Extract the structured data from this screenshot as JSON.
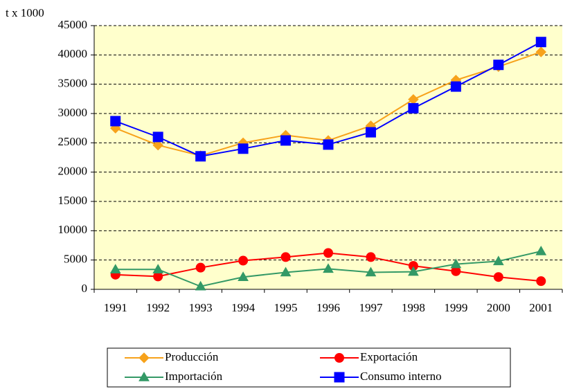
{
  "chart_data": {
    "type": "line",
    "y_label": "t x 1000",
    "categories": [
      "1991",
      "1992",
      "1993",
      "1994",
      "1995",
      "1996",
      "1997",
      "1998",
      "1999",
      "2000",
      "2001"
    ],
    "series": [
      {
        "name": "Producción",
        "color": "#f7a21b",
        "marker": "diamond",
        "values": [
          27500,
          24600,
          22800,
          25000,
          26300,
          25400,
          27900,
          32400,
          35700,
          38000,
          40500
        ]
      },
      {
        "name": "Exportación",
        "color": "#ff0000",
        "marker": "circle",
        "values": [
          2500,
          2200,
          3700,
          4900,
          5500,
          6200,
          5500,
          4000,
          3100,
          2100,
          1400
        ]
      },
      {
        "name": "Importación",
        "color": "#339966",
        "marker": "triangle",
        "values": [
          3400,
          3400,
          500,
          2100,
          2900,
          3500,
          2900,
          3000,
          4300,
          4800,
          6500
        ]
      },
      {
        "name": "Consumo interno",
        "color": "#0000ff",
        "marker": "square",
        "values": [
          28700,
          26000,
          22700,
          24000,
          25400,
          24700,
          26800,
          30900,
          34600,
          38300,
          42200
        ]
      }
    ],
    "ylim": [
      0,
      45000
    ],
    "yticks": [
      0,
      5000,
      10000,
      15000,
      20000,
      25000,
      30000,
      35000,
      40000,
      45000
    ],
    "grid": true,
    "legend": "bottom",
    "plot_background": "#ffffcc"
  }
}
